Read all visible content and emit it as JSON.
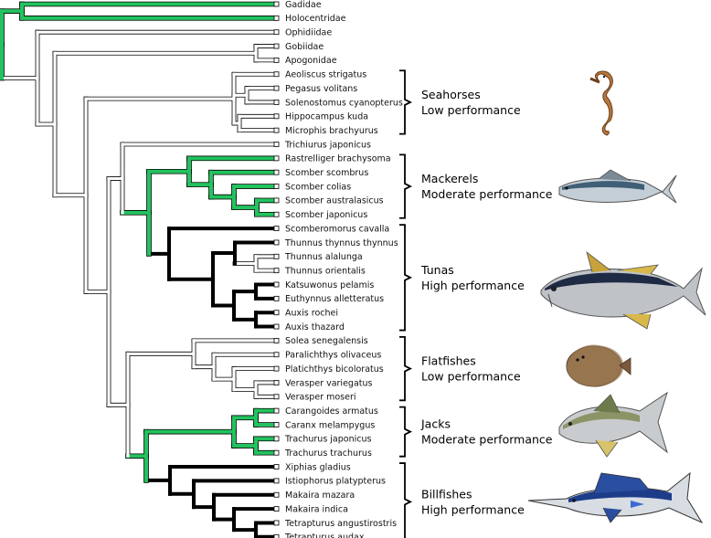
{
  "taxa": [
    "Gadidae",
    "Holocentridae",
    "Ophidiidae",
    "Gobiidae",
    "Apogonidae",
    "Aeoliscus strigatus",
    "Pegasus volitans",
    "Solenostomus cyanopterus",
    "Hippocampus kuda",
    "Microphis brachyurus",
    "Trichiurus japonicus",
    "Rastrelliger brachysoma",
    "Scomber scombrus",
    "Scomber colias",
    "Scomber australasicus",
    "Scomber japonicus",
    "Scomberomorus cavalla",
    "Thunnus thynnus thynnus",
    "Thunnus alalunga",
    "Thunnus orientalis",
    "Katsuwonus pelamis",
    "Euthynnus alletteratus",
    "Auxis rochei",
    "Auxis thazard",
    "Solea senegalensis",
    "Paralichthys olivaceus",
    "Platichthys bicoloratus",
    "Verasper variegatus",
    "Verasper moseri",
    "Carangoides armatus",
    "Caranx melampygus",
    "Trachurus japonicus",
    "Trachurus trachurus",
    "Xiphias gladius",
    "Istiophorus platypterus",
    "Makaira mazara",
    "Makaira indica",
    "Tetrapturus angustirostris",
    "Tetrapturus audax"
  ],
  "groups": [
    {
      "name": "Seahorses",
      "performance": "Low performance"
    },
    {
      "name": "Mackerels",
      "performance": "Moderate performance"
    },
    {
      "name": "Tunas",
      "performance": "High performance"
    },
    {
      "name": "Flatfishes",
      "performance": "Low performance"
    },
    {
      "name": "Jacks",
      "performance": "Moderate performance"
    },
    {
      "name": "Billfishes",
      "performance": "High performance"
    }
  ],
  "colors": {
    "high": "#000000",
    "moderate": "#22c35e",
    "low": "#ffffff",
    "outline": "#000000"
  },
  "icons": [
    "seahorse-icon",
    "mackerel-icon",
    "tuna-icon",
    "flatfish-icon",
    "jack-icon",
    "marlin-icon"
  ]
}
